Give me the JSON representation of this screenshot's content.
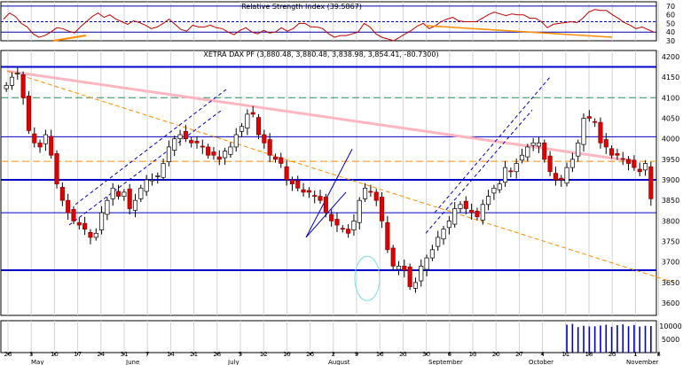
{
  "chart_data": [
    {
      "type": "line",
      "title": "Relative Strength Index (39.5867)",
      "ylim": [
        30,
        75
      ],
      "y_ticks": [
        70,
        60,
        50,
        40,
        30
      ],
      "reference_lines": [
        70,
        52,
        40
      ],
      "series": [
        {
          "values": [
            55,
            62,
            58,
            50,
            46,
            38,
            34,
            36,
            40,
            45,
            44,
            41,
            39,
            46,
            52,
            58,
            62,
            57,
            60,
            55,
            52,
            49,
            53,
            51,
            48,
            44,
            46,
            50,
            55,
            49,
            43,
            41,
            48,
            46,
            46,
            48,
            45,
            44,
            40,
            37,
            42,
            45,
            40,
            38,
            42,
            39,
            40,
            45,
            41,
            44,
            50,
            50,
            46,
            46,
            44,
            38,
            34,
            36,
            36,
            38,
            40,
            50,
            46,
            38,
            34,
            32,
            30,
            34,
            38,
            42,
            47,
            50,
            44,
            47,
            52,
            55,
            57,
            53,
            52,
            52,
            52,
            56,
            60,
            63,
            61,
            59,
            61,
            60,
            60,
            56,
            56,
            52,
            45,
            49,
            50,
            51,
            52,
            51,
            56,
            63,
            66,
            65,
            65,
            60,
            56,
            51,
            48,
            44,
            46,
            43,
            40
          ]
        }
      ]
    },
    {
      "type": "candlestick",
      "title": "XETRA DAX PF (3,880.48, 3,880.48, 3,838.98, 3,854.41, -80.7300)",
      "ylim": [
        3570,
        4215
      ],
      "y_ticks": [
        4200,
        4150,
        4100,
        4050,
        4000,
        3950,
        3900,
        3850,
        3800,
        3750,
        3700,
        3650,
        3600
      ],
      "horizontal_lines": [
        4175,
        4005,
        3900,
        3820,
        3680
      ],
      "dashed_levels": [
        4100,
        3945
      ],
      "x_tick_labels": [
        "26",
        "3",
        "10",
        "17",
        "24",
        "31",
        "7",
        "14",
        "21",
        "28",
        "5",
        "12",
        "19",
        "26",
        "2",
        "9",
        "16",
        "23",
        "30",
        "6",
        "13",
        "20",
        "27",
        "4",
        "11",
        "18",
        "25",
        "1",
        "8"
      ],
      "month_labels": [
        "May",
        "June",
        "July",
        "August",
        "September",
        "October",
        "November"
      ],
      "closes": [
        4130,
        4150,
        4160,
        4100,
        4020,
        3990,
        3980,
        4010,
        3960,
        3890,
        3850,
        3820,
        3800,
        3790,
        3780,
        3760,
        3770,
        3820,
        3850,
        3880,
        3860,
        3870,
        3830,
        3850,
        3880,
        3900,
        3900,
        3910,
        3940,
        3980,
        4000,
        4010,
        4000,
        3990,
        3990,
        3980,
        3960,
        3960,
        3950,
        3970,
        3980,
        4010,
        4030,
        4060,
        4060,
        4010,
        3990,
        3960,
        3950,
        3940,
        3900,
        3890,
        3880,
        3870,
        3870,
        3860,
        3850,
        3820,
        3800,
        3790,
        3780,
        3770,
        3800,
        3850,
        3880,
        3870,
        3850,
        3800,
        3730,
        3690,
        3690,
        3680,
        3640,
        3650,
        3690,
        3710,
        3730,
        3760,
        3780,
        3800,
        3830,
        3840,
        3830,
        3820,
        3810,
        3840,
        3860,
        3880,
        3890,
        3930,
        3920,
        3940,
        3960,
        3980,
        3990,
        3990,
        3950,
        3920,
        3900,
        3900,
        3930,
        3950,
        3990,
        4050,
        4050,
        4040,
        3990,
        3980,
        3960,
        3960,
        3950,
        3940,
        3930,
        3920,
        3940,
        3854
      ]
    },
    {
      "type": "bar",
      "y_ticks": [
        10000,
        5000
      ],
      "values": [
        0,
        0,
        0,
        0,
        0,
        0,
        0,
        0,
        0,
        0,
        0,
        0,
        0,
        0,
        0,
        0,
        0,
        0,
        0,
        0,
        0,
        0,
        0,
        0,
        0,
        0,
        0,
        0,
        0,
        0,
        0,
        0,
        0,
        0,
        0,
        0,
        0,
        0,
        0,
        0,
        0,
        0,
        0,
        0,
        0,
        0,
        0,
        0,
        0,
        0,
        0,
        0,
        0,
        0,
        0,
        0,
        0,
        0,
        0,
        0,
        0,
        0,
        0,
        0,
        0,
        0,
        0,
        0,
        0,
        0,
        0,
        0,
        0,
        0,
        0,
        0,
        0,
        0,
        0,
        0,
        0,
        0,
        0,
        0,
        0,
        0,
        0,
        0,
        0,
        0,
        0,
        0,
        0,
        0,
        0,
        0,
        0,
        0,
        0,
        0,
        10500,
        10800,
        9600,
        10100,
        9800,
        9900,
        10200,
        10500,
        9700,
        10300,
        10600,
        9900,
        10400,
        9800,
        10100,
        10000
      ]
    }
  ]
}
